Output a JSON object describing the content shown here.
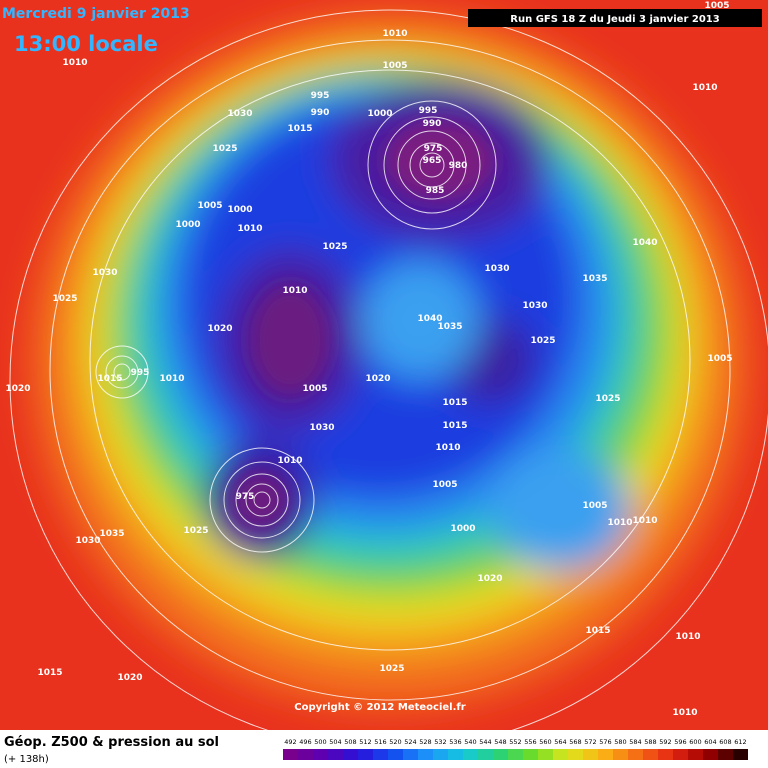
{
  "header": {
    "date": "Mercredi 9 janvier 2013",
    "time": "13:00 locale",
    "run": "Run GFS 18 Z du Jeudi 3 janvier 2013"
  },
  "footer": {
    "title": "Géop. Z500 & pression au sol",
    "subtitle": "(+ 138h)",
    "copyright": "Copyright © 2012 Meteociel.fr"
  },
  "legend": {
    "labels": [
      "492",
      "496",
      "500",
      "504",
      "508",
      "512",
      "516",
      "520",
      "524",
      "528",
      "532",
      "536",
      "540",
      "544",
      "548",
      "552",
      "556",
      "560",
      "564",
      "568",
      "572",
      "576",
      "580",
      "584",
      "588",
      "592",
      "596",
      "600",
      "604",
      "608",
      "612"
    ]
  },
  "isobar_labels": [
    "1010",
    "1010",
    "1005",
    "1010",
    "1005",
    "995",
    "990",
    "1030",
    "1015",
    "1000",
    "995",
    "990",
    "975",
    "965",
    "980",
    "985",
    "1025",
    "1005",
    "1000",
    "1000",
    "1010",
    "1025",
    "1040",
    "1030",
    "1030",
    "1035",
    "1025",
    "1010",
    "1030",
    "1040",
    "1035",
    "1020",
    "1025",
    "1005",
    "1015",
    "995",
    "1010",
    "1020",
    "1020",
    "1005",
    "1015",
    "1025",
    "1015",
    "1030",
    "1010",
    "1010",
    "1005",
    "975",
    "1005",
    "1010",
    "1010",
    "1000",
    "1025",
    "1035",
    "1030",
    "1020",
    "1015",
    "1010",
    "1025",
    "1015",
    "1020",
    "1010"
  ]
}
